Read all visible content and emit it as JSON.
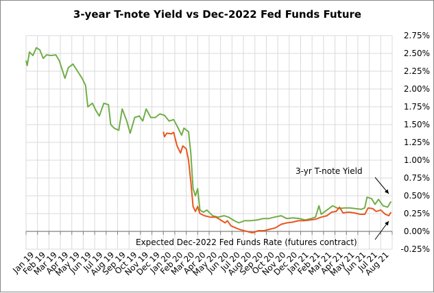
{
  "chart_data": {
    "type": "line",
    "title": "3-year T-note Yield vs Dec-2022 Fed Funds Future",
    "xlabel": "",
    "ylabel": "",
    "x_unit": "months since Jan 2019",
    "x_tick_labels": [
      "Jan 19",
      "Feb 19",
      "Mar 19",
      "Apr 19",
      "May 19",
      "Jun 19",
      "Jul 19",
      "Aug 19",
      "Sep 19",
      "Oct 19",
      "Nov 19",
      "Dec 19",
      "Jan 20",
      "Feb 20",
      "Mar 20",
      "Apr 20",
      "May 20",
      "Jun 20",
      "Jul 20",
      "Aug 20",
      "Sep 20",
      "Oct 20",
      "Nov 20",
      "Dec 20",
      "Jan 21",
      "Feb 21",
      "Mar 21",
      "Apr 21",
      "May 21",
      "Jun 21",
      "Jul 21",
      "Aug 21"
    ],
    "y_tick_labels": [
      "2.75%",
      "2.50%",
      "2.25%",
      "2.00%",
      "1.75%",
      "1.50%",
      "1.25%",
      "1.00%",
      "0.75%",
      "0.50%",
      "0.25%",
      "0.00%",
      "-0.25%"
    ],
    "ylim": [
      -0.25,
      2.75
    ],
    "xlim": [
      0,
      32
    ],
    "grid": true,
    "series": [
      {
        "name": "3-yr T-note Yield",
        "color": "#70ad47",
        "points": [
          [
            0,
            2.4
          ],
          [
            0.1,
            2.33
          ],
          [
            0.3,
            2.52
          ],
          [
            0.6,
            2.47
          ],
          [
            0.9,
            2.58
          ],
          [
            1.2,
            2.55
          ],
          [
            1.5,
            2.43
          ],
          [
            1.8,
            2.48
          ],
          [
            2.2,
            2.47
          ],
          [
            2.6,
            2.48
          ],
          [
            2.9,
            2.4
          ],
          [
            3.2,
            2.25
          ],
          [
            3.4,
            2.15
          ],
          [
            3.7,
            2.3
          ],
          [
            4.1,
            2.35
          ],
          [
            4.5,
            2.25
          ],
          [
            4.9,
            2.15
          ],
          [
            5.2,
            2.05
          ],
          [
            5.4,
            1.75
          ],
          [
            5.8,
            1.8
          ],
          [
            6.1,
            1.7
          ],
          [
            6.4,
            1.62
          ],
          [
            6.8,
            1.8
          ],
          [
            7.2,
            1.78
          ],
          [
            7.4,
            1.5
          ],
          [
            7.7,
            1.45
          ],
          [
            8.1,
            1.42
          ],
          [
            8.4,
            1.72
          ],
          [
            8.8,
            1.55
          ],
          [
            9.1,
            1.38
          ],
          [
            9.5,
            1.6
          ],
          [
            9.9,
            1.62
          ],
          [
            10.2,
            1.55
          ],
          [
            10.5,
            1.72
          ],
          [
            10.9,
            1.6
          ],
          [
            11.3,
            1.6
          ],
          [
            11.7,
            1.65
          ],
          [
            12.1,
            1.63
          ],
          [
            12.5,
            1.55
          ],
          [
            12.9,
            1.57
          ],
          [
            13.3,
            1.45
          ],
          [
            13.6,
            1.35
          ],
          [
            13.8,
            1.45
          ],
          [
            14.2,
            1.4
          ],
          [
            14.4,
            1.1
          ],
          [
            14.6,
            0.6
          ],
          [
            14.8,
            0.5
          ],
          [
            15.0,
            0.6
          ],
          [
            15.2,
            0.3
          ],
          [
            15.5,
            0.27
          ],
          [
            15.8,
            0.3
          ],
          [
            16.3,
            0.22
          ],
          [
            16.8,
            0.2
          ],
          [
            17.3,
            0.22
          ],
          [
            17.7,
            0.2
          ],
          [
            18.2,
            0.15
          ],
          [
            18.6,
            0.12
          ],
          [
            19.1,
            0.15
          ],
          [
            19.6,
            0.15
          ],
          [
            20.2,
            0.16
          ],
          [
            20.7,
            0.18
          ],
          [
            21.2,
            0.18
          ],
          [
            21.7,
            0.2
          ],
          [
            22.3,
            0.22
          ],
          [
            22.8,
            0.18
          ],
          [
            23.3,
            0.19
          ],
          [
            23.9,
            0.18
          ],
          [
            24.4,
            0.16
          ],
          [
            24.9,
            0.18
          ],
          [
            25.3,
            0.2
          ],
          [
            25.6,
            0.36
          ],
          [
            25.8,
            0.24
          ],
          [
            26.3,
            0.3
          ],
          [
            26.8,
            0.36
          ],
          [
            27.3,
            0.32
          ],
          [
            27.8,
            0.33
          ],
          [
            28.3,
            0.33
          ],
          [
            28.8,
            0.32
          ],
          [
            29.3,
            0.31
          ],
          [
            29.6,
            0.33
          ],
          [
            29.8,
            0.48
          ],
          [
            30.2,
            0.46
          ],
          [
            30.5,
            0.38
          ],
          [
            30.8,
            0.45
          ],
          [
            31.2,
            0.36
          ],
          [
            31.6,
            0.34
          ],
          [
            31.9,
            0.42
          ]
        ]
      },
      {
        "name": "Expected Dec-2022 Fed Funds Rate (futures contract)",
        "color": "#e8561c",
        "points": [
          [
            12.0,
            1.4
          ],
          [
            12.1,
            1.33
          ],
          [
            12.3,
            1.38
          ],
          [
            12.7,
            1.37
          ],
          [
            12.9,
            1.39
          ],
          [
            13.2,
            1.2
          ],
          [
            13.5,
            1.1
          ],
          [
            13.7,
            1.2
          ],
          [
            14.0,
            1.16
          ],
          [
            14.2,
            1.0
          ],
          [
            14.4,
            0.7
          ],
          [
            14.6,
            0.35
          ],
          [
            14.8,
            0.28
          ],
          [
            15.0,
            0.35
          ],
          [
            15.2,
            0.25
          ],
          [
            15.6,
            0.22
          ],
          [
            16.1,
            0.2
          ],
          [
            16.6,
            0.2
          ],
          [
            17.1,
            0.15
          ],
          [
            17.4,
            0.12
          ],
          [
            17.6,
            0.15
          ],
          [
            17.9,
            0.08
          ],
          [
            18.3,
            0.05
          ],
          [
            18.8,
            0.02
          ],
          [
            19.3,
            0.0
          ],
          [
            19.8,
            -0.02
          ],
          [
            20.3,
            0.01
          ],
          [
            20.8,
            0.01
          ],
          [
            21.3,
            0.03
          ],
          [
            21.8,
            0.05
          ],
          [
            22.3,
            0.1
          ],
          [
            22.8,
            0.12
          ],
          [
            23.3,
            0.13
          ],
          [
            23.8,
            0.15
          ],
          [
            24.3,
            0.15
          ],
          [
            24.8,
            0.16
          ],
          [
            25.3,
            0.17
          ],
          [
            25.8,
            0.2
          ],
          [
            26.3,
            0.22
          ],
          [
            26.7,
            0.27
          ],
          [
            27.1,
            0.28
          ],
          [
            27.4,
            0.34
          ],
          [
            27.7,
            0.26
          ],
          [
            28.2,
            0.27
          ],
          [
            28.7,
            0.26
          ],
          [
            29.2,
            0.24
          ],
          [
            29.6,
            0.24
          ],
          [
            29.9,
            0.33
          ],
          [
            30.3,
            0.32
          ],
          [
            30.6,
            0.28
          ],
          [
            31.0,
            0.3
          ],
          [
            31.4,
            0.24
          ],
          [
            31.7,
            0.22
          ],
          [
            31.9,
            0.27
          ]
        ]
      }
    ],
    "annotations": [
      "3-yr T-note Yield",
      "Expected Dec-2022 Fed Funds Rate (futures contract)"
    ],
    "legend": "none"
  }
}
